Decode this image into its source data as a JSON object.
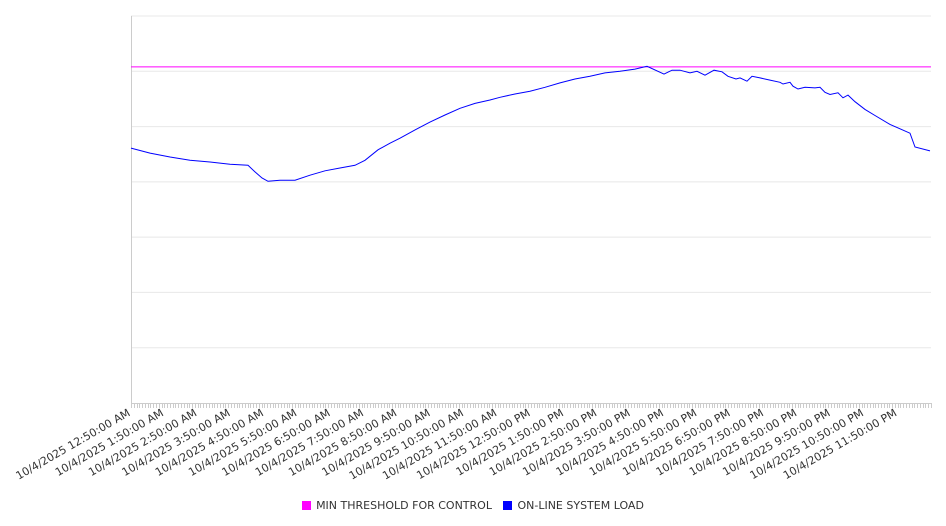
{
  "chart_data": {
    "type": "line",
    "title": "",
    "xlabel": "",
    "ylabel": "",
    "x_unit": "hours since 10/4/2025 12:50:00 AM",
    "xlim": [
      0,
      24
    ],
    "ylim": [
      0,
      70
    ],
    "y_grid_step": 10,
    "grid": true,
    "y_tick_labels_visible": false,
    "x_tick_labels": [
      "10/4/2025 12:50:00 AM",
      "10/4/2025 1:50:00 AM",
      "10/4/2025 2:50:00 AM",
      "10/4/2025 3:50:00 AM",
      "10/4/2025 4:50:00 AM",
      "10/4/2025 5:50:00 AM",
      "10/4/2025 6:50:00 AM",
      "10/4/2025 7:50:00 AM",
      "10/4/2025 8:50:00 AM",
      "10/4/2025 9:50:00 AM",
      "10/4/2025 10:50:00 AM",
      "10/4/2025 11:50:00 AM",
      "10/4/2025 12:50:00 PM",
      "10/4/2025 1:50:00 PM",
      "10/4/2025 2:50:00 PM",
      "10/4/2025 3:50:00 PM",
      "10/4/2025 4:50:00 PM",
      "10/4/2025 5:50:00 PM",
      "10/4/2025 6:50:00 PM",
      "10/4/2025 7:50:00 PM",
      "10/4/2025 8:50:00 PM",
      "10/4/2025 9:50:00 PM",
      "10/4/2025 10:50:00 PM",
      "10/4/2025 11:50:00 PM"
    ],
    "legend_position": "bottom",
    "series": [
      {
        "name": "MIN THRESHOLD FOR CONTROL",
        "color": "#ff00ff",
        "x": [
          0,
          24
        ],
        "y": [
          60.8,
          60.8
        ]
      },
      {
        "name": "ON-LINE SYSTEM LOAD",
        "color": "#0000ff",
        "x": [
          0,
          0.57,
          1.17,
          1.77,
          2.37,
          2.97,
          3.51,
          3.72,
          3.93,
          4.11,
          4.47,
          4.92,
          5.37,
          5.82,
          6.27,
          6.72,
          7.02,
          7.41,
          7.77,
          8.07,
          8.52,
          8.97,
          9.42,
          9.87,
          10.32,
          10.77,
          11.07,
          11.52,
          11.97,
          12.42,
          12.87,
          13.32,
          13.77,
          14.22,
          14.67,
          15.12,
          15.48,
          15.99,
          16.23,
          16.47,
          16.77,
          16.98,
          17.22,
          17.49,
          17.73,
          17.91,
          18.15,
          18.27,
          18.48,
          18.63,
          18.87,
          19.17,
          19.47,
          19.56,
          19.77,
          19.86,
          20.01,
          20.22,
          20.52,
          20.67,
          20.82,
          20.97,
          21.21,
          21.36,
          21.51,
          21.72,
          22.02,
          22.32,
          22.77,
          23.37,
          23.52,
          23.97
        ],
        "y": [
          46.1,
          45.2,
          44.5,
          43.9,
          43.6,
          43.2,
          43.0,
          41.8,
          40.7,
          40.1,
          40.3,
          40.3,
          41.2,
          42.0,
          42.5,
          43.0,
          43.9,
          45.8,
          47.0,
          47.9,
          49.4,
          50.8,
          52.1,
          53.3,
          54.2,
          54.8,
          55.3,
          55.9,
          56.4,
          57.1,
          57.9,
          58.6,
          59.1,
          59.7,
          60.0,
          60.4,
          60.9,
          59.5,
          60.2,
          60.2,
          59.7,
          60.0,
          59.3,
          60.2,
          59.9,
          59.1,
          58.6,
          58.8,
          58.2,
          59.1,
          58.8,
          58.4,
          58.0,
          57.7,
          58.0,
          57.3,
          56.8,
          57.1,
          57.0,
          57.1,
          56.2,
          55.8,
          56.1,
          55.2,
          55.7,
          54.5,
          53.1,
          52.0,
          50.4,
          48.8,
          46.3,
          45.6
        ]
      }
    ]
  },
  "legend": {
    "items": [
      {
        "label": "MIN THRESHOLD FOR CONTROL",
        "color": "#ff00ff"
      },
      {
        "label": "ON-LINE SYSTEM LOAD",
        "color": "#0000ff"
      }
    ]
  }
}
